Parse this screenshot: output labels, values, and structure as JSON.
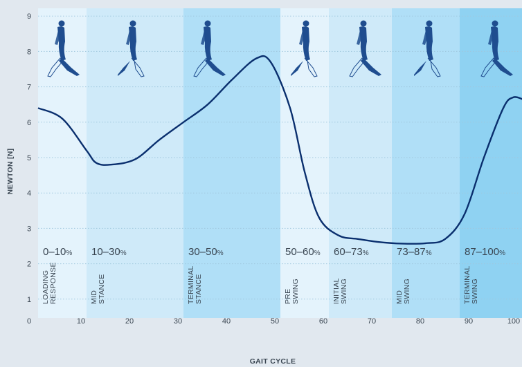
{
  "chart_data": {
    "type": "line",
    "xlabel": "GAIT CYCLE",
    "ylabel": "NEWTON [N]",
    "xlim": [
      0,
      100
    ],
    "ylim": [
      0,
      9
    ],
    "x_ticks": [
      "0",
      "10",
      "20",
      "30",
      "40",
      "50",
      "60",
      "70",
      "80",
      "90",
      "100"
    ],
    "y_ticks": [
      "1",
      "2",
      "3",
      "4",
      "5",
      "6",
      "7",
      "8",
      "9"
    ],
    "grid": "horizontal dotted",
    "colors": {
      "line": "#0a2f6e",
      "figure": "#1f4d8f"
    },
    "phases": [
      {
        "range": "0–10",
        "unit": "%",
        "start": 0,
        "end": 10,
        "label": [
          "LOADING",
          "RESPONSE"
        ],
        "color": "#e4f3fc"
      },
      {
        "range": "10–30",
        "unit": "%",
        "start": 10,
        "end": 30,
        "label": [
          "MID",
          "STANCE"
        ],
        "color": "#cfeaf9"
      },
      {
        "range": "30–50",
        "unit": "%",
        "start": 30,
        "end": 50,
        "label": [
          "TERMINAL",
          "STANCE"
        ],
        "color": "#b0dff7"
      },
      {
        "range": "50–60",
        "unit": "%",
        "start": 50,
        "end": 60,
        "label": [
          "PRE",
          "SWING"
        ],
        "color": "#e4f3fc"
      },
      {
        "range": "60–73",
        "unit": "%",
        "start": 60,
        "end": 73,
        "label": [
          "INITIAL",
          "SWING"
        ],
        "color": "#cfeaf9"
      },
      {
        "range": "73–87",
        "unit": "%",
        "start": 73,
        "end": 87,
        "label": [
          "MID",
          "SWING"
        ],
        "color": "#b0dff7"
      },
      {
        "range": "87–100",
        "unit": "%",
        "start": 87,
        "end": 100,
        "label": [
          "TERMINAL",
          "SWING"
        ],
        "color": "#8fd2f2"
      }
    ],
    "series": [
      {
        "x": [
          0,
          5,
          10,
          12,
          15,
          20,
          25,
          30,
          35,
          40,
          45,
          48,
          52,
          55,
          58,
          62,
          66,
          70,
          75,
          80,
          84,
          88,
          92,
          96,
          98,
          100
        ],
        "y": [
          6.4,
          6.1,
          5.2,
          4.85,
          4.8,
          4.95,
          5.5,
          6.0,
          6.5,
          7.2,
          7.8,
          7.7,
          6.4,
          4.6,
          3.3,
          2.8,
          2.7,
          2.62,
          2.57,
          2.58,
          2.7,
          3.4,
          5.0,
          6.4,
          6.7,
          6.65
        ]
      }
    ]
  }
}
